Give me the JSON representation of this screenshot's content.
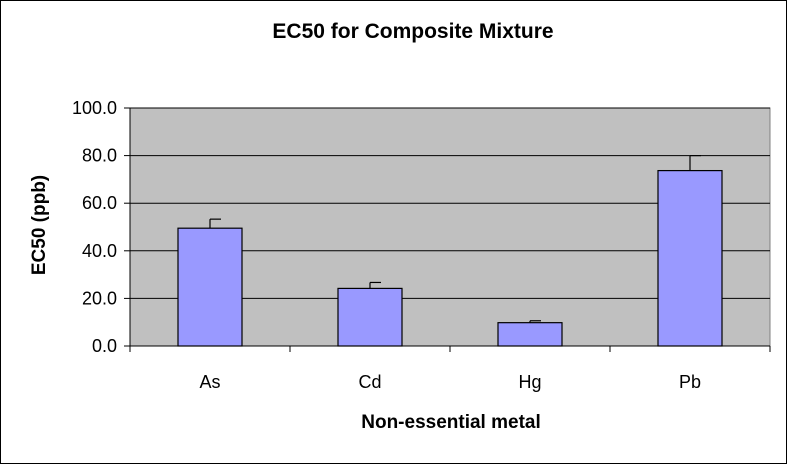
{
  "chart_data": {
    "type": "bar",
    "title": "EC50 for Composite Mixture",
    "xlabel": "Non-essential metal",
    "ylabel": "EC50 (ppb)",
    "categories": [
      "As",
      "Cd",
      "Hg",
      "Pb"
    ],
    "values": [
      49.5,
      24.2,
      9.8,
      73.7
    ],
    "error": [
      3.8,
      2.5,
      0.8,
      6.3
    ],
    "ylim": [
      0,
      100
    ],
    "yticks": [
      "0.0",
      "20.0",
      "40.0",
      "60.0",
      "80.0",
      "100.0"
    ],
    "grid": true,
    "legend": "none",
    "colors": {
      "bar_fill": "#9999FF",
      "bar_stroke": "#000000",
      "plot_background": "#C0C0C0",
      "gridline": "#000000"
    }
  }
}
